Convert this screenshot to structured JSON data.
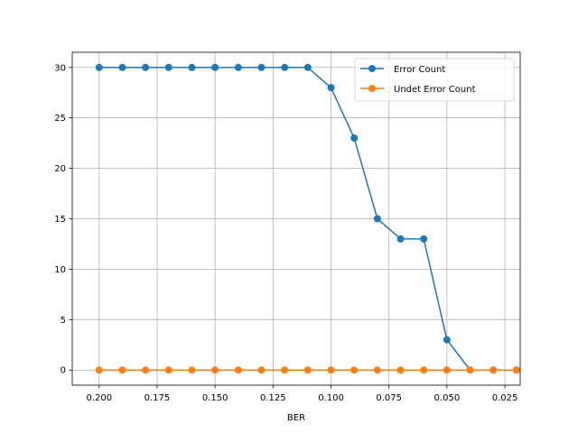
{
  "chart_data": {
    "type": "line",
    "title": "",
    "xlabel": "BER",
    "ylabel": "",
    "xlim": [
      0.2116,
      0.0184
    ],
    "ylim": [
      -1.5,
      31.5
    ],
    "x_inverted": true,
    "grid": true,
    "legend_position": "top-right",
    "x_ticks": [
      0.2,
      0.175,
      0.15,
      0.125,
      0.1,
      0.075,
      0.05,
      0.025
    ],
    "x_tick_labels": [
      "0.200",
      "0.175",
      "0.150",
      "0.125",
      "0.100",
      "0.075",
      "0.050",
      "0.025"
    ],
    "y_ticks": [
      0,
      5,
      10,
      15,
      20,
      25,
      30
    ],
    "y_tick_labels": [
      "0",
      "5",
      "10",
      "15",
      "20",
      "25",
      "30"
    ],
    "x": [
      0.2,
      0.19,
      0.18,
      0.17,
      0.16,
      0.15,
      0.14,
      0.13,
      0.12,
      0.11,
      0.1,
      0.09,
      0.08,
      0.07,
      0.06,
      0.05,
      0.04,
      0.03,
      0.02
    ],
    "series": [
      {
        "name": "Error Count",
        "color": "#1f77b4",
        "values": [
          30,
          30,
          30,
          30,
          30,
          30,
          30,
          30,
          30,
          30,
          28,
          23,
          15,
          13,
          13,
          3,
          0,
          0,
          0
        ]
      },
      {
        "name": "Undet Error Count",
        "color": "#ff7f0e",
        "values": [
          0,
          0,
          0,
          0,
          0,
          0,
          0,
          0,
          0,
          0,
          0,
          0,
          0,
          0,
          0,
          0,
          0,
          0,
          0
        ]
      }
    ]
  }
}
